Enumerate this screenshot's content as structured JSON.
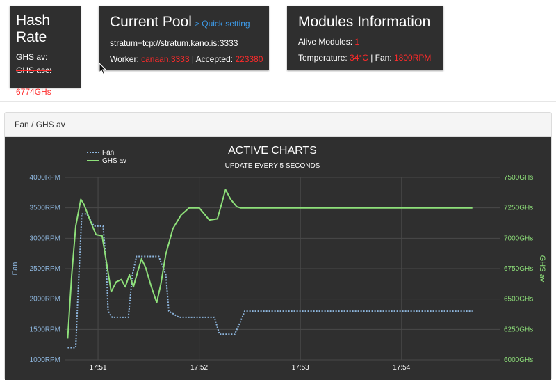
{
  "hash_rate": {
    "title_line1": "Hash",
    "title_line2": "Rate",
    "ghs_av_label": "GHS av:",
    "ghs_asc_label": "GHS asc:",
    "ghs_asc_value": "6774GHs"
  },
  "current_pool": {
    "title": "Current Pool",
    "quick_setting": "> Quick setting",
    "url": "stratum+tcp://stratum.kano.is:3333",
    "worker_label": "Worker: ",
    "worker_value": "canaan.3333",
    "accepted_label": " | Accepted: ",
    "accepted_value": "223380"
  },
  "modules": {
    "title": "Modules Information",
    "alive_label": "Alive Modules: ",
    "alive_value": "1",
    "temp_label": "Temperature: ",
    "temp_value": "34°C",
    "fan_label": " | Fan: ",
    "fan_value": "1800RPM"
  },
  "panel": {
    "heading": "Fan / GHS av"
  },
  "colors": {
    "card_bg": "#2f2f2f",
    "accent_red": "#ff2a2a",
    "link_blue": "#3d9be9",
    "fan_series": "#8fb8e0",
    "ghs_series": "#8ee07a"
  },
  "chart_data": {
    "type": "line",
    "title": "ACTIVE CHARTS",
    "subtitle": "UPDATE EVERY 5 SECONDS",
    "x_ticks": [
      "17:51",
      "17:52",
      "17:53",
      "17:54"
    ],
    "x_tick_minutes": [
      51,
      52,
      53,
      54
    ],
    "xlim": [
      50.67,
      54.97
    ],
    "left_axis": {
      "label": "Fan",
      "ylim": [
        1000,
        4000
      ],
      "ticks": [
        "1000RPM",
        "1500RPM",
        "2000RPM",
        "2500RPM",
        "3000RPM",
        "3500RPM",
        "4000RPM"
      ],
      "tick_values": [
        1000,
        1500,
        2000,
        2500,
        3000,
        3500,
        4000
      ]
    },
    "right_axis": {
      "label": "GHS av",
      "ylim": [
        6000,
        7500
      ],
      "ticks": [
        "6000GHs",
        "6250GHs",
        "6500GHs",
        "6750GHs",
        "7000GHs",
        "7250GHs",
        "7500GHs"
      ],
      "tick_values": [
        6000,
        6250,
        6500,
        6750,
        7000,
        7250,
        7500
      ]
    },
    "legend_placement": "top-left",
    "grid": true,
    "series": [
      {
        "name": "Fan",
        "axis": "left",
        "style": "dotted",
        "x": [
          50.7,
          50.78,
          50.8,
          50.84,
          50.89,
          50.96,
          51.05,
          51.08,
          51.1,
          51.14,
          51.2,
          51.3,
          51.34,
          51.38,
          51.45,
          51.6,
          51.67,
          51.7,
          51.8,
          52.0,
          52.15,
          52.2,
          52.35,
          52.4,
          52.45,
          53.0,
          54.0,
          54.7
        ],
        "y": [
          1200,
          1200,
          2000,
          3400,
          3400,
          3200,
          3200,
          2600,
          1800,
          1700,
          1700,
          1700,
          2400,
          2700,
          2700,
          2700,
          2400,
          1800,
          1700,
          1700,
          1700,
          1420,
          1420,
          1600,
          1800,
          1800,
          1800,
          1800
        ]
      },
      {
        "name": "GHS av",
        "axis": "right",
        "x": [
          50.7,
          50.74,
          50.78,
          50.83,
          50.86,
          50.92,
          50.98,
          51.04,
          51.08,
          51.13,
          51.18,
          51.23,
          51.27,
          51.31,
          51.35,
          51.39,
          51.43,
          51.47,
          51.52,
          51.58,
          51.62,
          51.67,
          51.74,
          51.82,
          51.9,
          52.0,
          52.1,
          52.18,
          52.22,
          52.26,
          52.31,
          52.37,
          52.41,
          52.45,
          52.55,
          52.7,
          53.0,
          53.5,
          54.0,
          54.7
        ],
        "y": [
          6175,
          6700,
          7100,
          7320,
          7280,
          7150,
          7030,
          7020,
          6820,
          6560,
          6640,
          6660,
          6600,
          6700,
          6600,
          6720,
          6830,
          6760,
          6620,
          6470,
          6620,
          6870,
          7080,
          7190,
          7250,
          7250,
          7150,
          7160,
          7280,
          7400,
          7320,
          7260,
          7250,
          7250,
          7250,
          7250,
          7250,
          7250,
          7250,
          7250
        ]
      }
    ]
  }
}
